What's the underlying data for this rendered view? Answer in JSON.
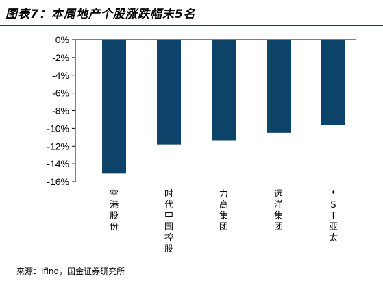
{
  "title": "图表7：本周地产个股涨跌幅末5名",
  "source": "来源：ifind，国金证券研究所",
  "colors": {
    "bar": "#0e4369",
    "rule": "#1b3a66",
    "axis": "#000000"
  },
  "chart_data": {
    "type": "bar",
    "title": "",
    "xlabel": "",
    "ylabel": "",
    "categories": [
      "空港股份",
      "时代中国控股",
      "力高集团",
      "远洋集团",
      "*ST亚太"
    ],
    "values": [
      -15.1,
      -11.8,
      -11.4,
      -10.5,
      -9.6
    ],
    "ylim": [
      -16,
      0
    ],
    "yticks": [
      0,
      -2,
      -4,
      -6,
      -8,
      -10,
      -12,
      -14,
      -16
    ],
    "ytick_labels": [
      "0%",
      "-2%",
      "-4%",
      "-6%",
      "-8%",
      "-10%",
      "-12%",
      "-14%",
      "-16%"
    ],
    "grid": false,
    "legend": "none"
  }
}
